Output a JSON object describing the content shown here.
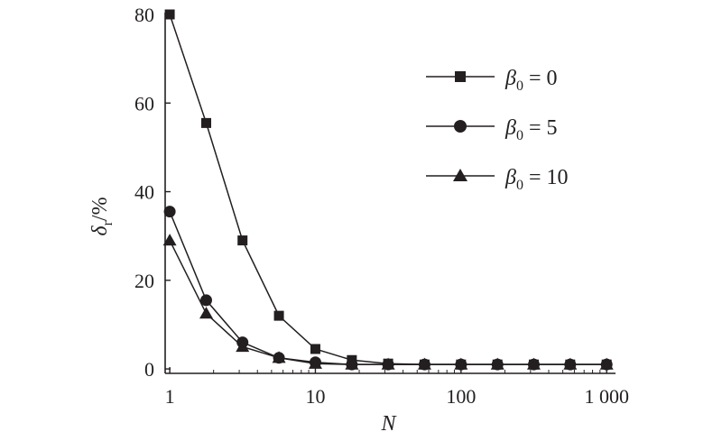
{
  "chart_data": {
    "type": "line",
    "x_scale": "log",
    "x": [
      1,
      1.78,
      3.16,
      5.62,
      10,
      17.8,
      31.6,
      56.2,
      100,
      178,
      316,
      562,
      1000
    ],
    "series": [
      {
        "name": "β0 = 0",
        "name_parts": {
          "symbol": "β",
          "sub": "0",
          "rest": " = 0"
        },
        "marker": "square",
        "values": [
          80,
          55.5,
          29,
          12,
          4.5,
          2,
          1.2,
          1,
          1,
          1,
          1,
          1,
          1
        ]
      },
      {
        "name": "β0 = 5",
        "name_parts": {
          "symbol": "β",
          "sub": "0",
          "rest": " = 5"
        },
        "marker": "circle",
        "values": [
          35.5,
          15.5,
          6,
          2.5,
          1.5,
          1,
          1,
          1,
          1,
          1,
          1,
          1,
          1
        ]
      },
      {
        "name": "β0 = 10",
        "name_parts": {
          "symbol": "β",
          "sub": "0",
          "rest": " = 10"
        },
        "marker": "triangle",
        "values": [
          29,
          12.5,
          5,
          2.5,
          1.2,
          1,
          1,
          1,
          1,
          1,
          1,
          1,
          1
        ]
      }
    ],
    "x_ticks": [
      1,
      10,
      100,
      1000
    ],
    "x_tick_labels": [
      "1",
      "10",
      "100",
      "1 000"
    ],
    "y_ticks": [
      0,
      20,
      40,
      60,
      80
    ],
    "y_tick_labels": [
      "0",
      "20",
      "40",
      "60",
      "80"
    ],
    "xlim": [
      0.93,
      1150
    ],
    "ylim": [
      -1,
      80
    ],
    "xlabel": "N",
    "ylabel": "δr/%",
    "ylabel_parts": {
      "symbol": "δ",
      "sub": "r",
      "rest": "/%"
    },
    "grid": false,
    "legend_position": "top-right",
    "colors": {
      "line": "#231f20",
      "marker": "#231f20"
    }
  }
}
